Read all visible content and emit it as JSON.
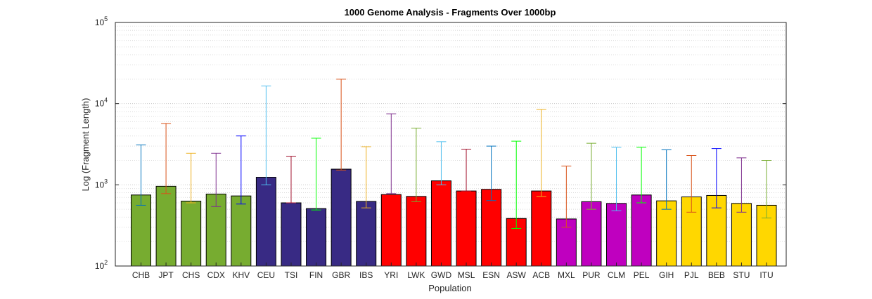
{
  "chart_data": {
    "type": "bar",
    "title": "1000 Genome Analysis - Fragments Over 1000bp",
    "xlabel": "Population",
    "ylabel": "Log (Fragment Length)",
    "yscale": "log",
    "ylim": [
      100,
      100000
    ],
    "yticks": [
      {
        "base": "10",
        "exp": "2"
      },
      {
        "base": "10",
        "exp": "3"
      },
      {
        "base": "10",
        "exp": "4"
      },
      {
        "base": "10",
        "exp": "5"
      }
    ],
    "grid": "dotted major and minor horizontal",
    "categories": [
      "CHB",
      "JPT",
      "CHS",
      "CDX",
      "KHV",
      "CEU",
      "TSI",
      "FIN",
      "GBR",
      "IBS",
      "YRI",
      "LWK",
      "GWD",
      "MSL",
      "ESN",
      "ASW",
      "ACB",
      "MXL",
      "PUR",
      "CLM",
      "PEL",
      "GIH",
      "PJL",
      "BEB",
      "STU",
      "ITU"
    ],
    "values": [
      750,
      960,
      630,
      770,
      730,
      1240,
      600,
      510,
      1560,
      625,
      760,
      720,
      1120,
      840,
      880,
      385,
      840,
      380,
      620,
      590,
      750,
      635,
      710,
      740,
      590,
      560
    ],
    "error_low": [
      560,
      780,
      600,
      540,
      580,
      1000,
      600,
      490,
      1520,
      520,
      780,
      620,
      1000,
      840,
      640,
      290,
      720,
      300,
      500,
      480,
      600,
      500,
      460,
      520,
      460,
      390
    ],
    "error_high": [
      3100,
      5700,
      2450,
      2450,
      4000,
      16500,
      2250,
      3750,
      20000,
      2950,
      7500,
      5000,
      3400,
      2750,
      3000,
      3450,
      8500,
      1700,
      3250,
      2900,
      2900,
      2700,
      2300,
      2800,
      2150,
      2000
    ],
    "bar_colors": [
      "#77ac30",
      "#77ac30",
      "#77ac30",
      "#77ac30",
      "#77ac30",
      "#382a84",
      "#382a84",
      "#382a84",
      "#382a84",
      "#382a84",
      "#ff0000",
      "#ff0000",
      "#ff0000",
      "#ff0000",
      "#ff0000",
      "#ff0000",
      "#ff0000",
      "#bf00bf",
      "#bf00bf",
      "#bf00bf",
      "#bf00bf",
      "#ffd700",
      "#ffd700",
      "#ffd700",
      "#ffd700",
      "#ffd700"
    ],
    "errorbar_colors": [
      "#0072bd",
      "#d95319",
      "#edb120",
      "#7e2f8e",
      "#0000ff",
      "#4dbeee",
      "#a2142f",
      "#00ff00",
      "#d95319",
      "#edb120",
      "#7e2f8e",
      "#77ac30",
      "#4dbeee",
      "#a2142f",
      "#0072bd",
      "#00ff00",
      "#edb120",
      "#d95319",
      "#77ac30",
      "#4dbeee",
      "#00ff00",
      "#0072bd",
      "#d95319",
      "#0000ff",
      "#7e2f8e",
      "#77ac30"
    ]
  }
}
